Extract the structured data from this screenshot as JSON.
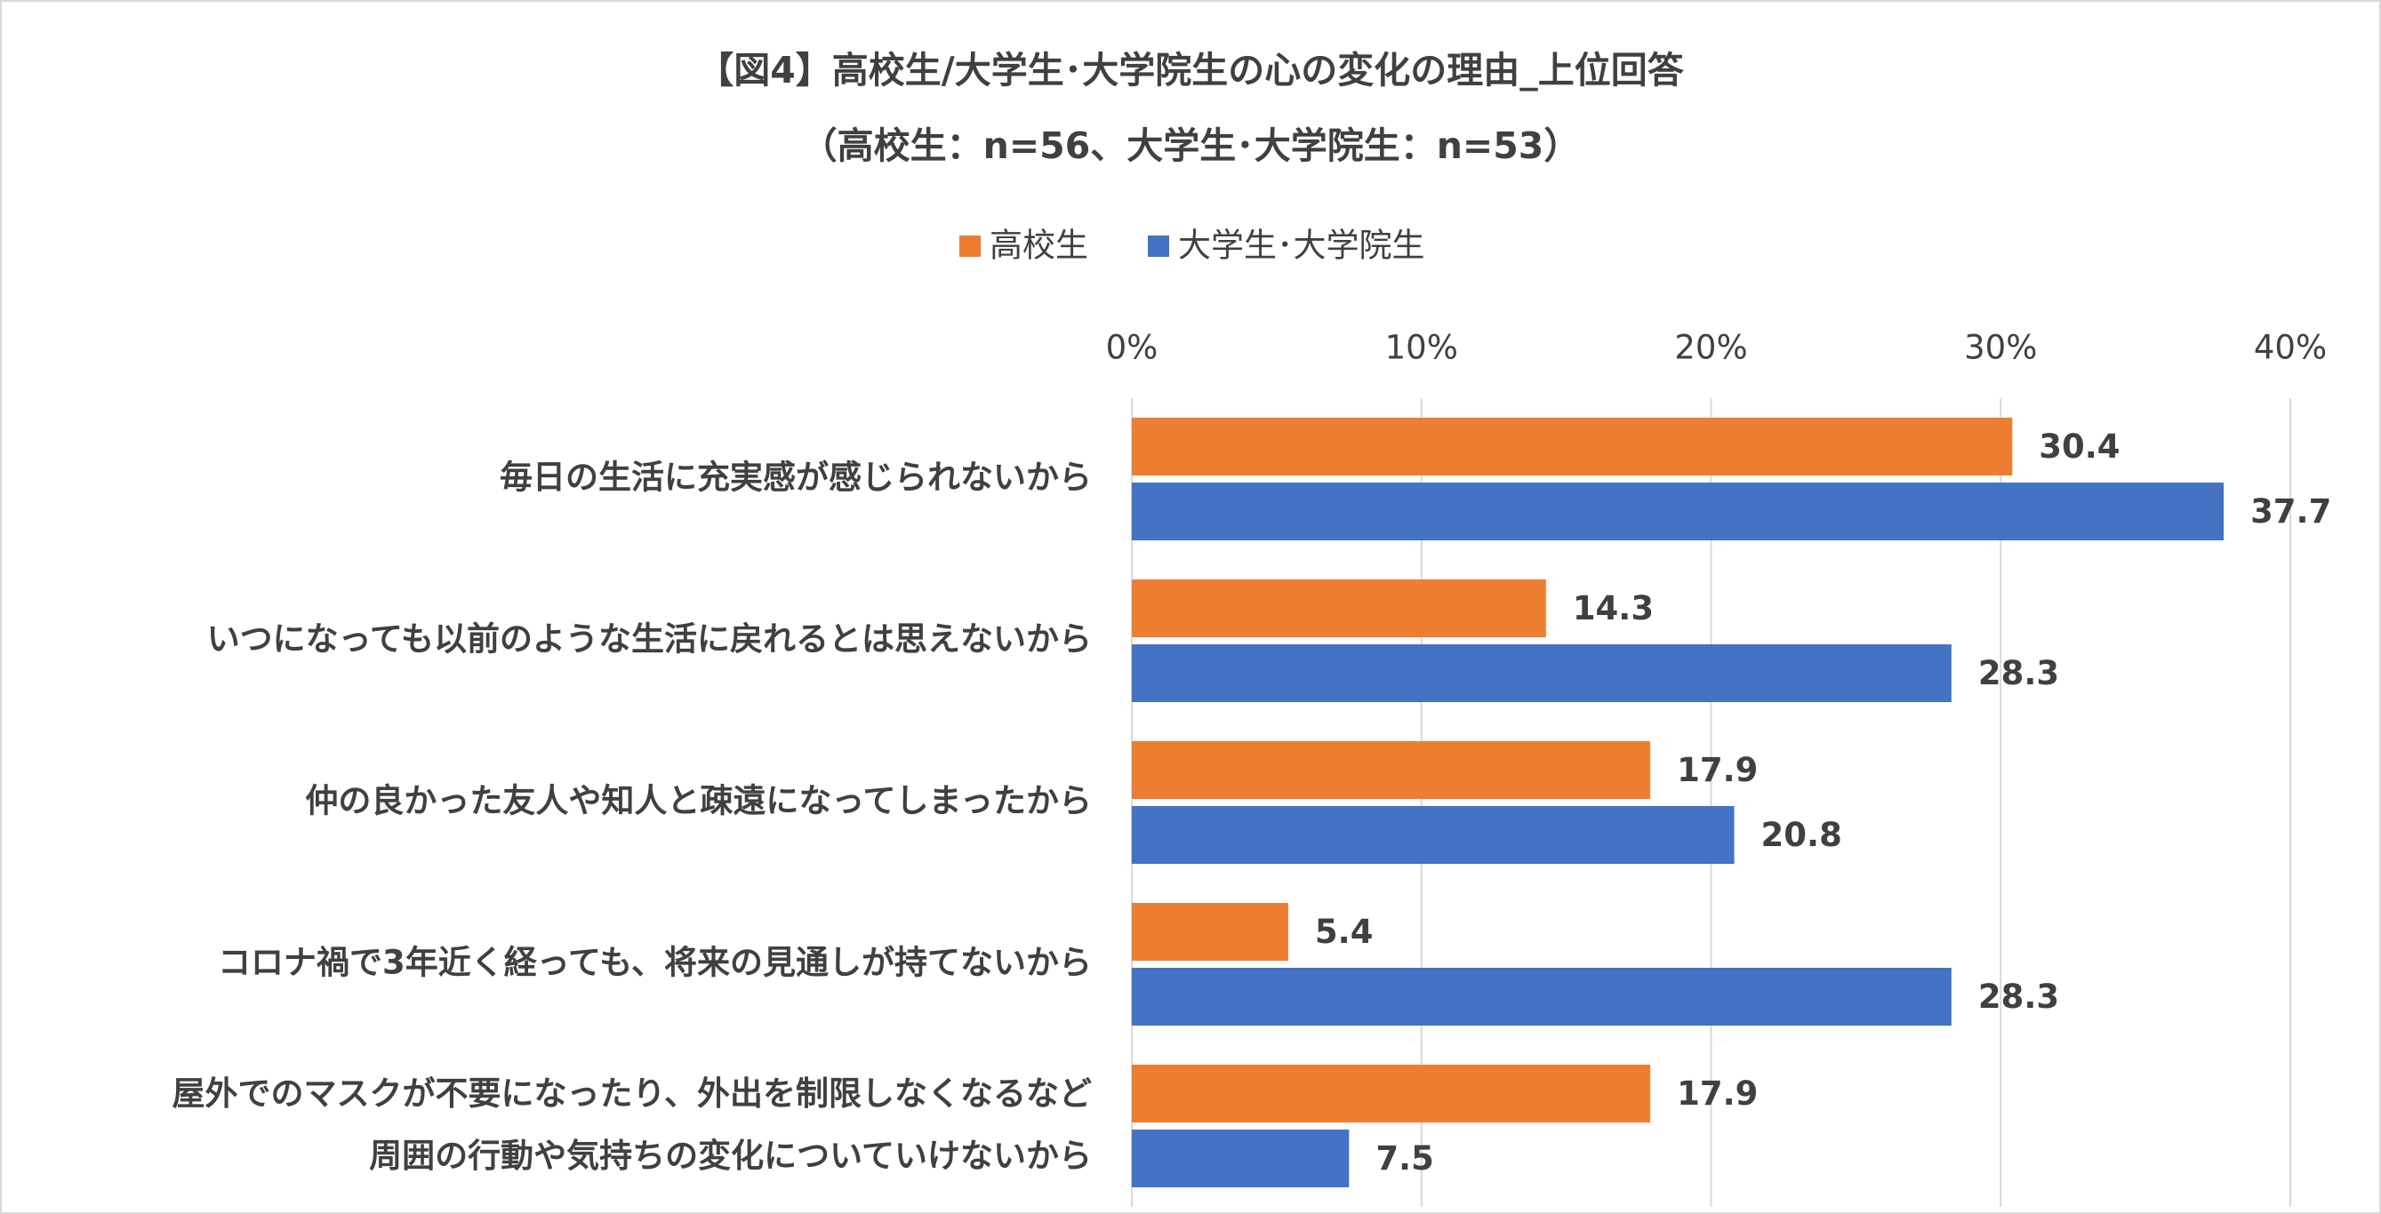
{
  "chart_data": {
    "type": "hbar",
    "title": "【図4】高校生/大学生･大学院生の心の変化の理由_上位回答",
    "subtitle": "（高校生：n=56、大学生･大学院生：n=53）",
    "categories": [
      "毎日の生活に充実感が感じられないから",
      "いつになっても以前のような生活に戻れるとは思えないから",
      "仲の良かった友人や知人と疎遠になってしまったから",
      "コロナ禍で3年近く経っても、将来の見通しが持てないから",
      "屋外でのマスクが不要になったり、外出を制限しなくなるなど\n周囲の行動や気持ちの変化についていけないから"
    ],
    "series": [
      {
        "name": "高校生",
        "color": "#ed7d31",
        "values": [
          30.4,
          14.3,
          17.9,
          5.4,
          17.9
        ]
      },
      {
        "name": "大学生･大学院生",
        "color": "#4472c4",
        "values": [
          37.7,
          28.3,
          20.8,
          28.3,
          7.5
        ]
      }
    ],
    "xlim": [
      0,
      40
    ],
    "xticks": [
      {
        "value": 0,
        "label": "0%"
      },
      {
        "value": 10,
        "label": "10%"
      },
      {
        "value": 20,
        "label": "20%"
      },
      {
        "value": 30,
        "label": "30%"
      },
      {
        "value": 40,
        "label": "40%"
      }
    ],
    "grid": true,
    "legend": "top"
  }
}
